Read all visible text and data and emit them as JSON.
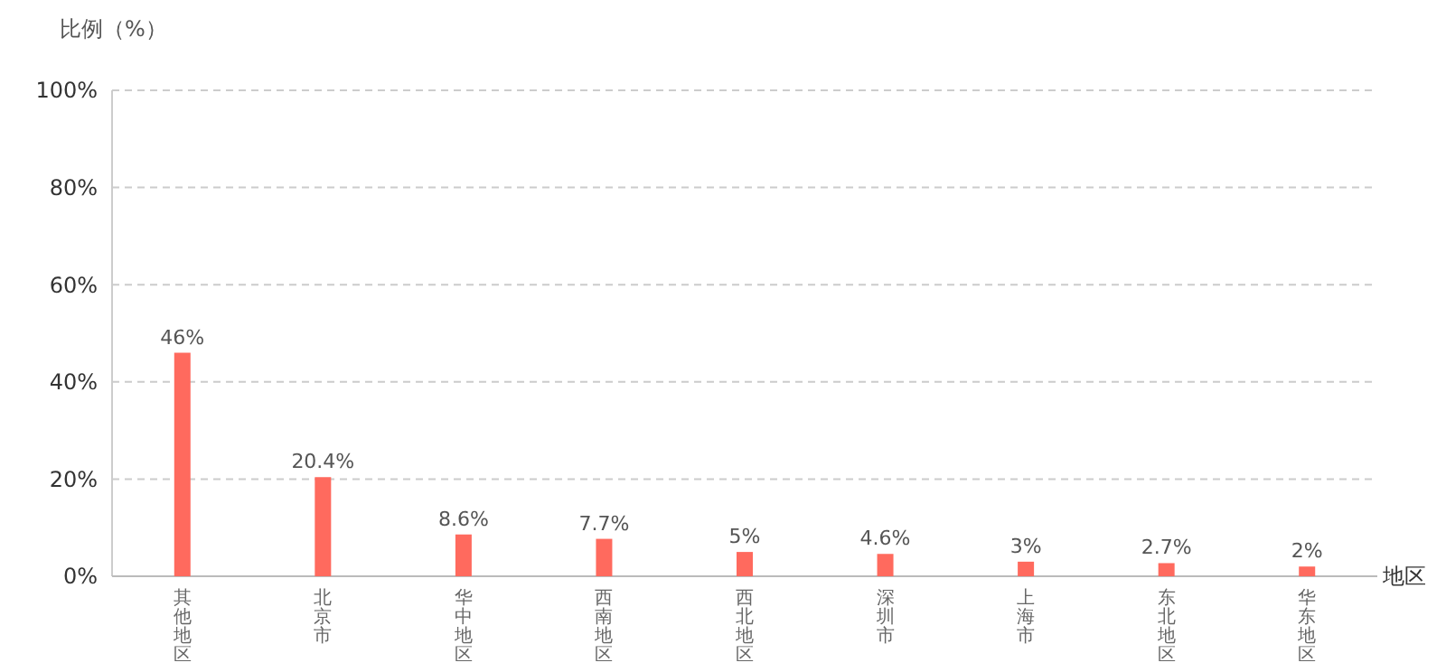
{
  "chart_data": {
    "type": "bar",
    "ylabel": "比例（%）",
    "xlabel": "地区",
    "categories": [
      "其他地区",
      "北京市",
      "华中地区",
      "西南地区",
      "西北地区",
      "深圳市",
      "上海市",
      "东北地区",
      "华东地区"
    ],
    "values": [
      46,
      20.4,
      8.6,
      7.7,
      5,
      4.6,
      3,
      2.7,
      2
    ],
    "value_labels": [
      "46%",
      "20.4%",
      "8.6%",
      "7.7%",
      "5%",
      "4.6%",
      "3%",
      "2.7%",
      "2%"
    ],
    "color": "#ff6a5e",
    "ylim": [
      0,
      100
    ],
    "yticks": [
      {
        "value": 0,
        "label": "0%"
      },
      {
        "value": 20,
        "label": "20%"
      },
      {
        "value": 40,
        "label": "40%"
      },
      {
        "value": 60,
        "label": "60%"
      },
      {
        "value": 80,
        "label": "80%"
      },
      {
        "value": 100,
        "label": "100%"
      }
    ],
    "grid": "y"
  }
}
